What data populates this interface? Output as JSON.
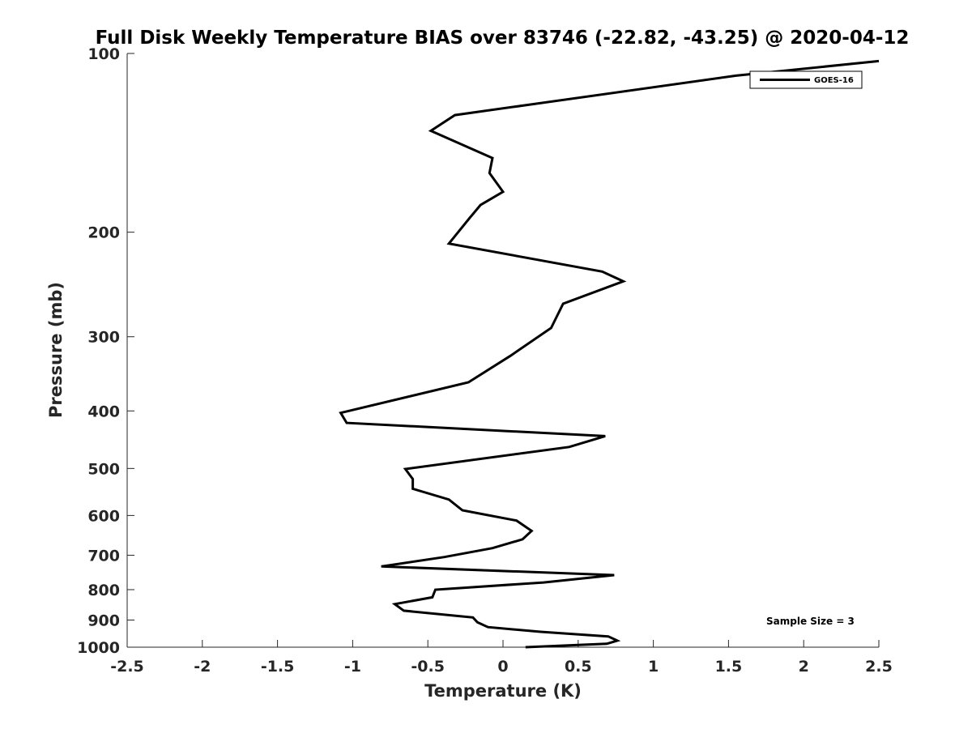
{
  "chart_data": {
    "type": "line",
    "title": "Full Disk Weekly Temperature BIAS over 83746 (-22.82, -43.25) @ 2020-04-12",
    "xlabel": "Temperature (K)",
    "ylabel": "Pressure (mb)",
    "xlim": [
      -2.5,
      2.5
    ],
    "ylim": [
      100,
      1000
    ],
    "y_scale": "log",
    "y_reversed": true,
    "x_ticks": [
      -2.5,
      -2,
      -1.5,
      -1,
      -0.5,
      0,
      0.5,
      1,
      1.5,
      2,
      2.5
    ],
    "x_tick_labels": [
      "-2.5",
      "-2",
      "-1.5",
      "-1",
      "-0.5",
      "0",
      "0.5",
      "1",
      "1.5",
      "2",
      "2.5"
    ],
    "y_ticks": [
      100,
      200,
      300,
      400,
      500,
      600,
      700,
      800,
      900,
      1000
    ],
    "y_tick_labels": [
      "100",
      "200",
      "300",
      "400",
      "500",
      "600",
      "700",
      "800",
      "900",
      "1000"
    ],
    "grid": false,
    "legend_position": "top-right",
    "line_color": "#000000",
    "series": [
      {
        "name": "GOES-16",
        "points": [
          [
            2.5,
            103
          ],
          [
            1.55,
            109
          ],
          [
            -0.32,
            127
          ],
          [
            -0.48,
            135
          ],
          [
            -0.07,
            150
          ],
          [
            -0.09,
            159
          ],
          [
            0.0,
            171
          ],
          [
            -0.15,
            180
          ],
          [
            -0.22,
            189
          ],
          [
            -0.36,
            209
          ],
          [
            0.66,
            233
          ],
          [
            0.8,
            242
          ],
          [
            0.4,
            264
          ],
          [
            0.32,
            290
          ],
          [
            0.05,
            323
          ],
          [
            -0.23,
            358
          ],
          [
            -1.08,
            403
          ],
          [
            -1.04,
            419
          ],
          [
            0.68,
            441
          ],
          [
            0.44,
            460
          ],
          [
            -0.65,
            501
          ],
          [
            -0.6,
            521
          ],
          [
            -0.6,
            541
          ],
          [
            -0.36,
            564
          ],
          [
            -0.27,
            588
          ],
          [
            0.09,
            612
          ],
          [
            0.19,
            637
          ],
          [
            0.13,
            658
          ],
          [
            -0.07,
            681
          ],
          [
            -0.39,
            705
          ],
          [
            -0.81,
            731
          ],
          [
            0.74,
            756
          ],
          [
            0.27,
            778
          ],
          [
            -0.45,
            800
          ],
          [
            -0.47,
            824
          ],
          [
            -0.72,
            846
          ],
          [
            -0.66,
            868
          ],
          [
            -0.2,
            891
          ],
          [
            -0.17,
            908
          ],
          [
            -0.1,
            925
          ],
          [
            0.25,
            942
          ],
          [
            0.7,
            959
          ],
          [
            0.76,
            975
          ],
          [
            0.69,
            987
          ],
          [
            0.15,
            1000
          ]
        ]
      }
    ],
    "legend": [
      {
        "label": "GOES-16",
        "color": "#000000"
      }
    ],
    "annotation": "Sample Size = 3"
  }
}
